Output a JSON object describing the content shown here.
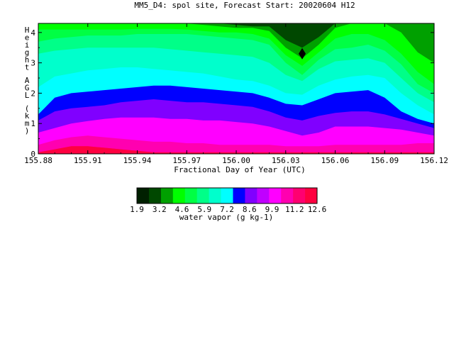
{
  "chart_data": {
    "type": "heatmap",
    "title": "MM5_D4: spol site,  Forecast Start: 20020604 H12",
    "xlabel": "Fractional Day of Year (UTC)",
    "ylabel": "Height AGL (km)",
    "xlim": [
      155.88,
      156.12
    ],
    "ylim": [
      0,
      4.3
    ],
    "x_ticks": [
      "155.88",
      "155.91",
      "155.94",
      "155.97",
      "156.00",
      "156.03",
      "156.06",
      "156.09",
      "156.12"
    ],
    "y_ticks": [
      "0",
      "1",
      "2",
      "3",
      "4"
    ],
    "colorbar_label": "water vapor (g kg-1)",
    "colorbar_ticks": [
      "1.9",
      "3.2",
      "4.6",
      "5.9",
      "7.2",
      "8.6",
      "9.9",
      "11.2",
      "12.6"
    ],
    "levels": [
      {
        "min": 1.9,
        "color": "#002000"
      },
      {
        "min": 2.55,
        "color": "#004800"
      },
      {
        "min": 3.2,
        "color": "#00a000"
      },
      {
        "min": 3.9,
        "color": "#00ff00"
      },
      {
        "min": 4.6,
        "color": "#00ff44"
      },
      {
        "min": 5.25,
        "color": "#00ff88"
      },
      {
        "min": 5.9,
        "color": "#00ffcc"
      },
      {
        "min": 6.55,
        "color": "#00ffff"
      },
      {
        "min": 7.2,
        "color": "#0000ff"
      },
      {
        "min": 7.9,
        "color": "#8000ff"
      },
      {
        "min": 8.6,
        "color": "#c000ff"
      },
      {
        "min": 9.25,
        "color": "#ff00ff"
      },
      {
        "min": 9.9,
        "color": "#ff00b0"
      },
      {
        "min": 10.55,
        "color": "#ff0070"
      },
      {
        "min": 11.2,
        "color": "#ff0040"
      }
    ],
    "marker": {
      "symbol": "diamond",
      "x": 156.04,
      "y": 3.3
    },
    "bands": [
      {
        "color": "#ff0070",
        "top": [
          0.05,
          0.15,
          0.25,
          0.25,
          0.2,
          0.15,
          0.1,
          0.05,
          0.05,
          0.05,
          0.05,
          0.05,
          0.05,
          0.05,
          0.05,
          0.05,
          0.05,
          0.05,
          0.05,
          0.05,
          0.05,
          0.05,
          0.05,
          0.05,
          0.05
        ]
      },
      {
        "color": "#ff00b0",
        "top": [
          0.3,
          0.45,
          0.55,
          0.6,
          0.55,
          0.5,
          0.45,
          0.4,
          0.4,
          0.35,
          0.35,
          0.3,
          0.3,
          0.3,
          0.3,
          0.25,
          0.25,
          0.25,
          0.3,
          0.3,
          0.3,
          0.3,
          0.3,
          0.35,
          0.35
        ]
      },
      {
        "color": "#ff00ff",
        "top": [
          0.7,
          0.85,
          1.0,
          1.08,
          1.15,
          1.2,
          1.2,
          1.2,
          1.15,
          1.15,
          1.1,
          1.1,
          1.05,
          1.0,
          0.9,
          0.75,
          0.6,
          0.7,
          0.9,
          0.9,
          0.9,
          0.85,
          0.8,
          0.7,
          0.6
        ]
      },
      {
        "color": "#8000ff",
        "top": [
          1.1,
          1.4,
          1.5,
          1.55,
          1.6,
          1.7,
          1.75,
          1.8,
          1.75,
          1.7,
          1.7,
          1.65,
          1.6,
          1.55,
          1.4,
          1.2,
          1.1,
          1.25,
          1.35,
          1.4,
          1.4,
          1.3,
          1.15,
          1.0,
          0.85
        ]
      },
      {
        "color": "#0000ff",
        "top": [
          1.3,
          1.85,
          2.0,
          2.05,
          2.1,
          2.15,
          2.2,
          2.25,
          2.25,
          2.2,
          2.15,
          2.1,
          2.05,
          2.0,
          1.85,
          1.65,
          1.6,
          1.8,
          2.0,
          2.05,
          2.1,
          1.85,
          1.4,
          1.15,
          1.0
        ]
      },
      {
        "color": "#00ffff",
        "top": [
          2.2,
          2.55,
          2.65,
          2.75,
          2.8,
          2.85,
          2.85,
          2.8,
          2.75,
          2.7,
          2.65,
          2.55,
          2.45,
          2.4,
          2.25,
          2.0,
          1.95,
          2.25,
          2.45,
          2.55,
          2.6,
          2.5,
          2.0,
          1.6,
          1.3
        ]
      },
      {
        "color": "#00ffcc",
        "top": [
          3.3,
          3.4,
          3.45,
          3.5,
          3.5,
          3.5,
          3.5,
          3.5,
          3.45,
          3.4,
          3.35,
          3.3,
          3.25,
          3.2,
          3.0,
          2.6,
          2.4,
          2.8,
          3.05,
          3.1,
          3.15,
          3.0,
          2.5,
          2.0,
          1.7
        ]
      },
      {
        "color": "#00ff88",
        "top": [
          3.7,
          3.8,
          3.85,
          3.9,
          3.9,
          3.9,
          3.95,
          3.95,
          3.95,
          3.95,
          3.9,
          3.85,
          3.8,
          3.75,
          3.6,
          3.0,
          2.6,
          3.1,
          3.45,
          3.5,
          3.6,
          3.4,
          2.95,
          2.3,
          2.0
        ]
      },
      {
        "color": "#00ff44",
        "top": [
          4.1,
          4.1,
          4.1,
          4.1,
          4.1,
          4.1,
          4.12,
          4.12,
          4.12,
          4.1,
          4.05,
          4.0,
          4.0,
          3.95,
          3.8,
          3.25,
          2.9,
          3.35,
          3.8,
          3.95,
          3.95,
          3.75,
          3.3,
          2.7,
          2.3
        ]
      },
      {
        "color": "#00ff00",
        "top": [
          4.3,
          4.3,
          4.3,
          4.3,
          4.3,
          4.3,
          4.3,
          4.3,
          4.3,
          4.3,
          4.25,
          4.2,
          4.15,
          4.15,
          4.05,
          3.5,
          3.15,
          3.6,
          4.15,
          4.3,
          4.3,
          4.3,
          4.0,
          3.35,
          3.0
        ]
      },
      {
        "color": "#00a000",
        "top": [
          4.3,
          4.3,
          4.3,
          4.3,
          4.3,
          4.3,
          4.3,
          4.3,
          4.3,
          4.3,
          4.3,
          4.3,
          4.25,
          4.2,
          4.2,
          3.75,
          3.5,
          3.85,
          4.3,
          4.3,
          4.3,
          4.3,
          4.3,
          4.3,
          4.3
        ]
      },
      {
        "color": "#004800",
        "top": [
          4.3,
          4.3,
          4.3,
          4.3,
          4.3,
          4.3,
          4.3,
          4.3,
          4.3,
          4.3,
          4.3,
          4.3,
          4.3,
          4.3,
          4.3,
          4.3,
          4.3,
          4.3,
          4.3,
          4.3,
          4.3,
          4.3,
          4.3,
          4.3,
          4.3
        ]
      }
    ]
  }
}
